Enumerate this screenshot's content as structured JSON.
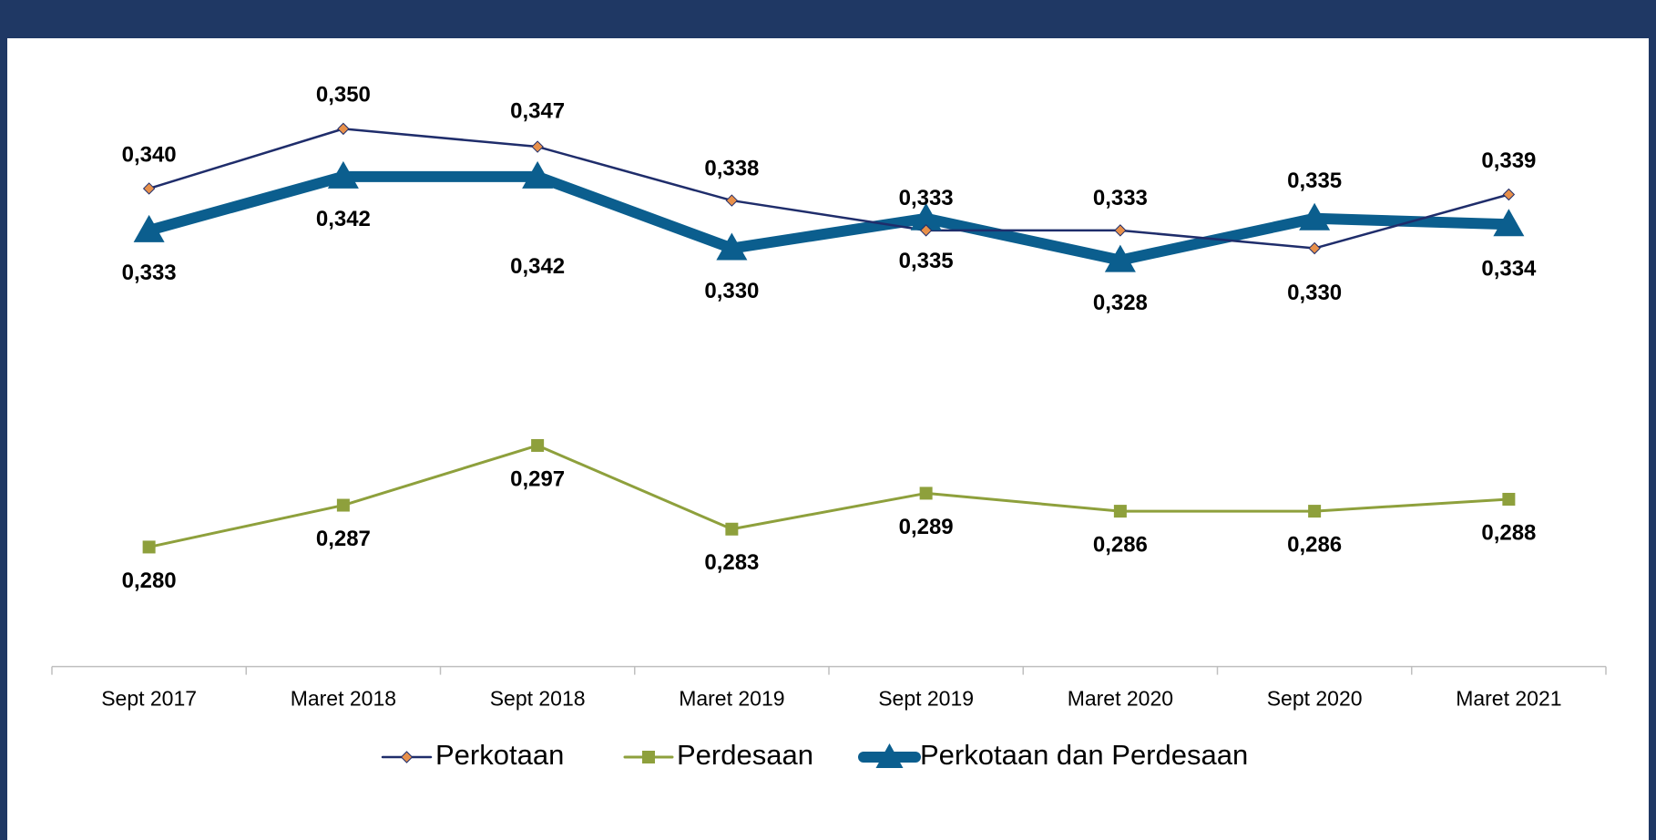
{
  "chart_data": {
    "type": "line",
    "categories": [
      "Sept 2017",
      "Maret 2018",
      "Sept 2018",
      "Maret 2019",
      "Sept 2019",
      "Maret 2020",
      "Sept 2020",
      "Maret 2021"
    ],
    "ylim": [
      0.26,
      0.365
    ],
    "series": [
      {
        "name": "Perkotaan",
        "color": "#1f2d6b",
        "values": [
          0.34,
          0.35,
          0.347,
          0.338,
          0.333,
          0.333,
          0.33,
          0.339
        ],
        "value_labels": [
          "0,340",
          "0,350",
          "0,347",
          "0,338",
          "0,333",
          "0,333",
          "0,330",
          "0,339"
        ]
      },
      {
        "name": "Perdesaan",
        "color": "#8ea03c",
        "values": [
          0.28,
          0.287,
          0.297,
          0.283,
          0.289,
          0.286,
          0.286,
          0.288
        ],
        "value_labels": [
          "0,280",
          "0,287",
          "0,297",
          "0,283",
          "0,289",
          "0,286",
          "0,286",
          "0,288"
        ]
      },
      {
        "name": "Perkotaan dan Perdesaan",
        "color": "#0b5e8e",
        "values": [
          0.333,
          0.342,
          0.342,
          0.33,
          0.335,
          0.328,
          0.335,
          0.334
        ],
        "value_labels": [
          "0,333",
          "0,342",
          "0,342",
          "0,330",
          "0,335",
          "0,328",
          "0,335",
          "0,334"
        ]
      }
    ]
  }
}
